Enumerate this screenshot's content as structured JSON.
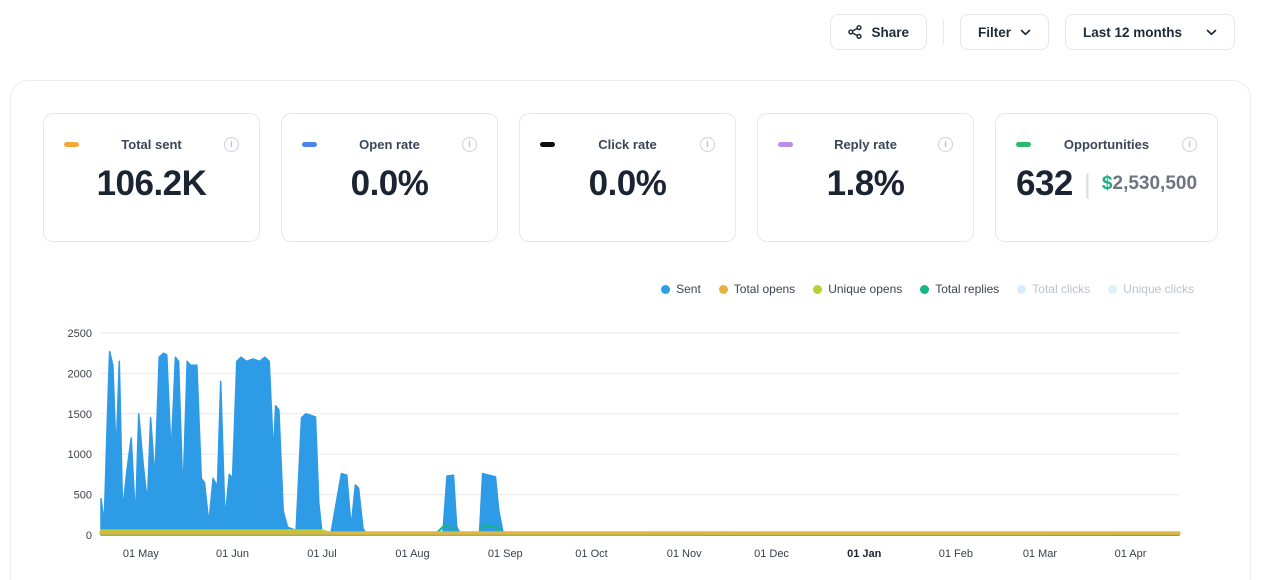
{
  "topbar": {
    "share_label": "Share",
    "filter_label": "Filter",
    "range_label": "Last 12 months"
  },
  "stats": [
    {
      "label": "Total sent",
      "value": "106.2K",
      "color": "#F5A93B"
    },
    {
      "label": "Open rate",
      "value": "0.0%",
      "color": "#4A84F0"
    },
    {
      "label": "Click rate",
      "value": "0.0%",
      "color": "#0B0D10"
    },
    {
      "label": "Reply rate",
      "value": "1.8%",
      "color": "#BB8CEA"
    },
    {
      "label": "Opportunities",
      "value": "632",
      "color": "#2DB96A",
      "currency": "$",
      "amount": "2,530,500",
      "currency_color": "#17B07C",
      "amount_color": "#6d7580"
    }
  ],
  "legend": [
    {
      "label": "Sent",
      "color": "#2E9BE6",
      "disabled": false
    },
    {
      "label": "Total opens",
      "color": "#EAB13C",
      "disabled": false
    },
    {
      "label": "Unique opens",
      "color": "#B3D235",
      "disabled": false
    },
    {
      "label": "Total replies",
      "color": "#12B682",
      "disabled": false
    },
    {
      "label": "Total clicks",
      "color": "#D9ECFA",
      "disabled": true
    },
    {
      "label": "Unique clicks",
      "color": "#DFF0FB",
      "disabled": true
    }
  ],
  "chart_data": {
    "type": "area",
    "title": "",
    "xlabel": "",
    "ylabel": "",
    "ylim": [
      0,
      2500
    ],
    "grid": true,
    "legend_position": "top-right",
    "y_ticks": [
      0,
      500,
      1000,
      1500,
      2000,
      2500
    ],
    "x_ticks": [
      {
        "label": "01 May",
        "f": 0.037
      },
      {
        "label": "01 Jun",
        "f": 0.122
      },
      {
        "label": "01 Jul",
        "f": 0.205
      },
      {
        "label": "01 Aug",
        "f": 0.289
      },
      {
        "label": "01 Sep",
        "f": 0.375
      },
      {
        "label": "01 Oct",
        "f": 0.455
      },
      {
        "label": "01 Nov",
        "f": 0.541
      },
      {
        "label": "01 Dec",
        "f": 0.622
      },
      {
        "label": "01 Jan",
        "f": 0.708,
        "bold": true
      },
      {
        "label": "01 Feb",
        "f": 0.793
      },
      {
        "label": "01 Mar",
        "f": 0.871
      },
      {
        "label": "01 Apr",
        "f": 0.955
      }
    ],
    "series": [
      {
        "name": "Sent",
        "color": "#2E9BE6",
        "kind": "area",
        "width": 1.5,
        "points": [
          [
            0.0,
            450
          ],
          [
            0.003,
            150
          ],
          [
            0.006,
            1500
          ],
          [
            0.008,
            2270
          ],
          [
            0.011,
            2100
          ],
          [
            0.014,
            1000
          ],
          [
            0.017,
            2150
          ],
          [
            0.02,
            300
          ],
          [
            0.024,
            800
          ],
          [
            0.028,
            1200
          ],
          [
            0.032,
            200
          ],
          [
            0.035,
            1500
          ],
          [
            0.039,
            900
          ],
          [
            0.043,
            400
          ],
          [
            0.046,
            1450
          ],
          [
            0.05,
            700
          ],
          [
            0.054,
            2200
          ],
          [
            0.058,
            2250
          ],
          [
            0.061,
            2230
          ],
          [
            0.065,
            1000
          ],
          [
            0.069,
            2200
          ],
          [
            0.072,
            2150
          ],
          [
            0.076,
            500
          ],
          [
            0.08,
            2150
          ],
          [
            0.083,
            2100
          ],
          [
            0.089,
            2100
          ],
          [
            0.093,
            700
          ],
          [
            0.096,
            650
          ],
          [
            0.1,
            150
          ],
          [
            0.104,
            700
          ],
          [
            0.108,
            600
          ],
          [
            0.111,
            1900
          ],
          [
            0.115,
            200
          ],
          [
            0.119,
            750
          ],
          [
            0.122,
            700
          ],
          [
            0.126,
            2150
          ],
          [
            0.13,
            2200
          ],
          [
            0.135,
            2150
          ],
          [
            0.141,
            2180
          ],
          [
            0.147,
            2150
          ],
          [
            0.152,
            2200
          ],
          [
            0.156,
            2150
          ],
          [
            0.16,
            1000
          ],
          [
            0.162,
            1600
          ],
          [
            0.165,
            1550
          ],
          [
            0.169,
            300
          ],
          [
            0.173,
            100
          ],
          [
            0.176,
            80
          ],
          [
            0.181,
            60
          ],
          [
            0.186,
            1450
          ],
          [
            0.19,
            1500
          ],
          [
            0.195,
            1480
          ],
          [
            0.199,
            1460
          ],
          [
            0.202,
            400
          ],
          [
            0.205,
            30
          ],
          [
            0.213,
            0
          ],
          [
            0.223,
            760
          ],
          [
            0.228,
            740
          ],
          [
            0.232,
            100
          ],
          [
            0.236,
            620
          ],
          [
            0.239,
            580
          ],
          [
            0.243,
            80
          ],
          [
            0.247,
            0
          ],
          [
            0.288,
            0
          ],
          [
            0.317,
            0
          ],
          [
            0.321,
            730
          ],
          [
            0.327,
            740
          ],
          [
            0.33,
            100
          ],
          [
            0.334,
            0
          ],
          [
            0.351,
            0
          ],
          [
            0.354,
            760
          ],
          [
            0.36,
            740
          ],
          [
            0.366,
            720
          ],
          [
            0.369,
            300
          ],
          [
            0.373,
            30
          ],
          [
            0.38,
            10
          ],
          [
            1.0,
            5
          ]
        ]
      },
      {
        "name": "Total replies",
        "color": "#12B682",
        "kind": "line",
        "width": 2,
        "points": [
          [
            0,
            8
          ],
          [
            0.31,
            8
          ],
          [
            0.318,
            110
          ],
          [
            0.325,
            90
          ],
          [
            0.332,
            10
          ],
          [
            0.35,
            10
          ],
          [
            0.356,
            120
          ],
          [
            0.366,
            100
          ],
          [
            0.374,
            12
          ],
          [
            0.4,
            6
          ],
          [
            1,
            4
          ]
        ]
      },
      {
        "name": "Unique opens",
        "color": "#B3D235",
        "kind": "line",
        "width": 2,
        "points": [
          [
            0,
            60
          ],
          [
            0.205,
            60
          ],
          [
            0.215,
            15
          ],
          [
            1,
            15
          ]
        ]
      },
      {
        "name": "Total opens",
        "color": "#E3B53E",
        "kind": "line",
        "width": 3.5,
        "points": [
          [
            0,
            25
          ],
          [
            1,
            25
          ]
        ]
      }
    ]
  }
}
